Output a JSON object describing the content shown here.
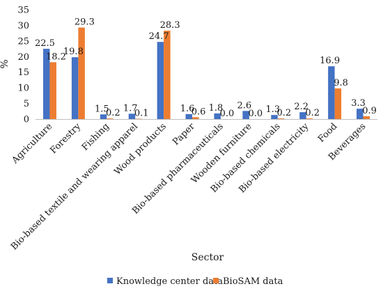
{
  "chart_data": {
    "type": "bar",
    "title": "",
    "xlabel": "Sector",
    "ylabel": "%",
    "ylim": [
      0,
      35
    ],
    "yticks": [
      0,
      5,
      10,
      15,
      20,
      25,
      30,
      35
    ],
    "grid": false,
    "legend_position": "bottom",
    "categories": [
      "Agriculture",
      "Forestry",
      "Fishing",
      "Bio-based textile and wearing apparel",
      "Wood products",
      "Paper",
      "Bio-based pharmaceuticals",
      "Wooden furniture",
      "Bio-based chemicals",
      "Bio-based electricity",
      "Food",
      "Beverages"
    ],
    "series": [
      {
        "name": "Knowledge center data",
        "color": "#4472C4",
        "values": [
          22.5,
          19.8,
          1.5,
          1.7,
          24.7,
          1.6,
          1.8,
          2.6,
          1.3,
          2.2,
          16.9,
          3.3
        ],
        "labels": [
          "22.5",
          "19.8",
          "1.5",
          "1.7",
          "24.7",
          "1.6",
          "1.8",
          "2.6",
          "1.3",
          "2.2",
          "16.9",
          "3.3"
        ]
      },
      {
        "name": "BioSAM data",
        "color": "#ED7D31",
        "values": [
          18.2,
          29.3,
          0.2,
          0.1,
          28.3,
          0.6,
          0.0,
          0.0,
          0.2,
          0.2,
          9.8,
          0.9
        ],
        "labels": [
          "18.2",
          "29.3",
          "0.2",
          "0.1",
          "28.3",
          "0.6",
          "0.0",
          "0.0",
          "0.2",
          "0.2",
          "9.8",
          "0.9"
        ]
      }
    ]
  }
}
